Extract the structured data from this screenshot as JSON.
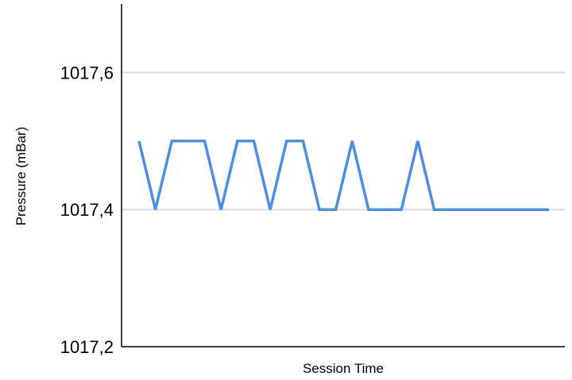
{
  "chart_data": {
    "type": "line",
    "title": "",
    "xlabel": "Session Time",
    "ylabel": "Pressure (mBar)",
    "ylim": [
      1017.2,
      1017.7
    ],
    "yticks": [
      {
        "value": 1017.2,
        "label": "1017,2"
      },
      {
        "value": 1017.4,
        "label": "1017,4"
      },
      {
        "value": 1017.6,
        "label": "1017,6"
      }
    ],
    "grid": true,
    "legend": "none",
    "line_color": "#4a8fe2",
    "series": [
      {
        "values": [
          1017.5,
          1017.4,
          1017.5,
          1017.5,
          1017.5,
          1017.4,
          1017.5,
          1017.5,
          1017.4,
          1017.5,
          1017.5,
          1017.4,
          1017.4,
          1017.5,
          1017.4,
          1017.4,
          1017.4,
          1017.5,
          1017.4,
          1017.4,
          1017.4,
          1017.4,
          1017.4,
          1017.4,
          1017.4,
          1017.4
        ]
      }
    ]
  }
}
